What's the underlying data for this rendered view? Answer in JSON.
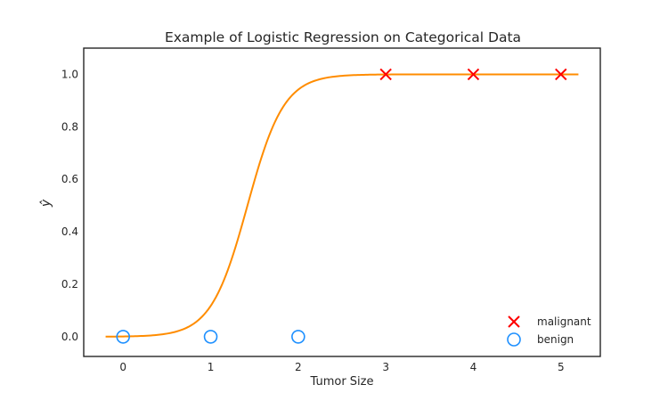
{
  "chart_data": {
    "type": "scatter",
    "title": "Example of Logistic Regression on Categorical Data",
    "xlabel": "Tumor Size",
    "ylabel": "ŷ",
    "xlim": [
      -0.45,
      5.45
    ],
    "ylim": [
      -0.075,
      1.1
    ],
    "x_ticks": [
      0,
      1,
      2,
      3,
      4,
      5
    ],
    "y_ticks": [
      0.0,
      0.2,
      0.4,
      0.6,
      0.8,
      1.0
    ],
    "y_tick_labels": [
      "0.0",
      "0.2",
      "0.4",
      "0.6",
      "0.8",
      "1.0"
    ],
    "grid": false,
    "legend_position": "bottom-right",
    "series": [
      {
        "name": "malignant",
        "marker": "x",
        "color": "#ff0000",
        "x": [
          3,
          4,
          5
        ],
        "y": [
          1,
          1,
          1
        ]
      },
      {
        "name": "benign",
        "marker": "circle",
        "color": "#1e90ff",
        "x": [
          0,
          1,
          2
        ],
        "y": [
          0,
          0,
          0
        ]
      }
    ],
    "curve": {
      "color": "#ff8c00",
      "x_range": [
        -0.2,
        5.2
      ],
      "steepness": 4.8,
      "midpoint": 1.42
    }
  }
}
